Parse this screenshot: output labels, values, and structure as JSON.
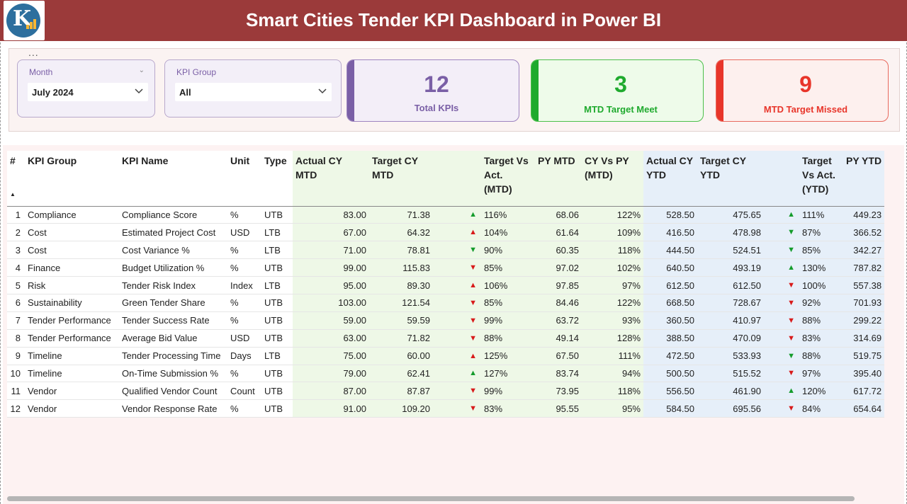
{
  "header": {
    "title": "Smart Cities Tender KPI Dashboard in Power BI"
  },
  "colors": {
    "header_bg": "#9b3a3a",
    "purple": "#7a5fa6",
    "green": "#1faa2e",
    "red": "#e8352a",
    "up": "#159c2c",
    "down": "#d81b1b"
  },
  "menu": {
    "dots": "..."
  },
  "filters": {
    "month": {
      "label": "Month",
      "value": "July 2024"
    },
    "kpi_group": {
      "label": "KPI Group",
      "value": "All"
    }
  },
  "cards": {
    "total": {
      "value": "12",
      "label": "Total KPIs"
    },
    "meet": {
      "value": "3",
      "label": "MTD Target Meet"
    },
    "missed": {
      "value": "9",
      "label": "MTD Target Missed"
    }
  },
  "table": {
    "headers": {
      "num": "#",
      "group": "KPI Group",
      "name": "KPI Name",
      "unit": "Unit",
      "type": "Type",
      "act_mtd": "Actual CY MTD",
      "tgt_mtd": "Target CY MTD",
      "tva_mtd": "Target Vs Act. (MTD)",
      "py_mtd": "PY MTD",
      "cvp_mtd": "CY Vs PY (MTD)",
      "act_ytd": "Actual CY YTD",
      "tgt_ytd": "Target CY YTD",
      "tva_ytd": "Target Vs Act. (YTD)",
      "py_ytd": "PY YTD"
    },
    "rows": [
      {
        "n": "1",
        "group": "Compliance",
        "name": "Compliance Score",
        "unit": "%",
        "type": "UTB",
        "act_mtd": "83.00",
        "tgt_mtd": "71.38",
        "mtd_dir": "up",
        "tva_mtd": "116%",
        "py_mtd": "68.06",
        "cvp_mtd": "122%",
        "act_ytd": "528.50",
        "tgt_ytd": "475.65",
        "ytd_dir": "up",
        "tva_ytd": "111%",
        "py_ytd": "449.23"
      },
      {
        "n": "2",
        "group": "Cost",
        "name": "Estimated Project Cost",
        "unit": "USD",
        "type": "LTB",
        "act_mtd": "67.00",
        "tgt_mtd": "64.32",
        "mtd_dir": "up-red",
        "tva_mtd": "104%",
        "py_mtd": "61.64",
        "cvp_mtd": "109%",
        "act_ytd": "416.50",
        "tgt_ytd": "478.98",
        "ytd_dir": "down-green",
        "tva_ytd": "87%",
        "py_ytd": "366.52"
      },
      {
        "n": "3",
        "group": "Cost",
        "name": "Cost Variance %",
        "unit": "%",
        "type": "LTB",
        "act_mtd": "71.00",
        "tgt_mtd": "78.81",
        "mtd_dir": "down-green",
        "tva_mtd": "90%",
        "py_mtd": "60.35",
        "cvp_mtd": "118%",
        "act_ytd": "444.50",
        "tgt_ytd": "524.51",
        "ytd_dir": "down-green",
        "tva_ytd": "85%",
        "py_ytd": "342.27"
      },
      {
        "n": "4",
        "group": "Finance",
        "name": "Budget Utilization %",
        "unit": "%",
        "type": "UTB",
        "act_mtd": "99.00",
        "tgt_mtd": "115.83",
        "mtd_dir": "down",
        "tva_mtd": "85%",
        "py_mtd": "97.02",
        "cvp_mtd": "102%",
        "act_ytd": "640.50",
        "tgt_ytd": "493.19",
        "ytd_dir": "up",
        "tva_ytd": "130%",
        "py_ytd": "787.82"
      },
      {
        "n": "5",
        "group": "Risk",
        "name": "Tender Risk Index",
        "unit": "Index",
        "type": "LTB",
        "act_mtd": "95.00",
        "tgt_mtd": "89.30",
        "mtd_dir": "up-red",
        "tva_mtd": "106%",
        "py_mtd": "97.85",
        "cvp_mtd": "97%",
        "act_ytd": "612.50",
        "tgt_ytd": "612.50",
        "ytd_dir": "down",
        "tva_ytd": "100%",
        "py_ytd": "557.38"
      },
      {
        "n": "6",
        "group": "Sustainability",
        "name": "Green Tender Share",
        "unit": "%",
        "type": "UTB",
        "act_mtd": "103.00",
        "tgt_mtd": "121.54",
        "mtd_dir": "down",
        "tva_mtd": "85%",
        "py_mtd": "84.46",
        "cvp_mtd": "122%",
        "act_ytd": "668.50",
        "tgt_ytd": "728.67",
        "ytd_dir": "down",
        "tva_ytd": "92%",
        "py_ytd": "701.93"
      },
      {
        "n": "7",
        "group": "Tender Performance",
        "name": "Tender Success Rate",
        "unit": "%",
        "type": "UTB",
        "act_mtd": "59.00",
        "tgt_mtd": "59.59",
        "mtd_dir": "down",
        "tva_mtd": "99%",
        "py_mtd": "63.72",
        "cvp_mtd": "93%",
        "act_ytd": "360.50",
        "tgt_ytd": "410.97",
        "ytd_dir": "down",
        "tva_ytd": "88%",
        "py_ytd": "299.22"
      },
      {
        "n": "8",
        "group": "Tender Performance",
        "name": "Average Bid Value",
        "unit": "USD",
        "type": "UTB",
        "act_mtd": "63.00",
        "tgt_mtd": "71.82",
        "mtd_dir": "down",
        "tva_mtd": "88%",
        "py_mtd": "49.14",
        "cvp_mtd": "128%",
        "act_ytd": "388.50",
        "tgt_ytd": "470.09",
        "ytd_dir": "down",
        "tva_ytd": "83%",
        "py_ytd": "314.69"
      },
      {
        "n": "9",
        "group": "Timeline",
        "name": "Tender Processing Time",
        "unit": "Days",
        "type": "LTB",
        "act_mtd": "75.00",
        "tgt_mtd": "60.00",
        "mtd_dir": "up-red",
        "tva_mtd": "125%",
        "py_mtd": "67.50",
        "cvp_mtd": "111%",
        "act_ytd": "472.50",
        "tgt_ytd": "533.93",
        "ytd_dir": "down-green",
        "tva_ytd": "88%",
        "py_ytd": "519.75"
      },
      {
        "n": "10",
        "group": "Timeline",
        "name": "On-Time Submission %",
        "unit": "%",
        "type": "UTB",
        "act_mtd": "79.00",
        "tgt_mtd": "62.41",
        "mtd_dir": "up",
        "tva_mtd": "127%",
        "py_mtd": "83.74",
        "cvp_mtd": "94%",
        "act_ytd": "500.50",
        "tgt_ytd": "515.52",
        "ytd_dir": "down",
        "tva_ytd": "97%",
        "py_ytd": "395.40"
      },
      {
        "n": "11",
        "group": "Vendor",
        "name": "Qualified Vendor Count",
        "unit": "Count",
        "type": "UTB",
        "act_mtd": "87.00",
        "tgt_mtd": "87.87",
        "mtd_dir": "down",
        "tva_mtd": "99%",
        "py_mtd": "73.95",
        "cvp_mtd": "118%",
        "act_ytd": "556.50",
        "tgt_ytd": "461.90",
        "ytd_dir": "up",
        "tva_ytd": "120%",
        "py_ytd": "617.72"
      },
      {
        "n": "12",
        "group": "Vendor",
        "name": "Vendor Response Rate",
        "unit": "%",
        "type": "UTB",
        "act_mtd": "91.00",
        "tgt_mtd": "109.20",
        "mtd_dir": "down",
        "tva_mtd": "83%",
        "py_mtd": "95.55",
        "cvp_mtd": "95%",
        "act_ytd": "584.50",
        "tgt_ytd": "695.56",
        "ytd_dir": "down",
        "tva_ytd": "84%",
        "py_ytd": "654.64"
      }
    ]
  }
}
